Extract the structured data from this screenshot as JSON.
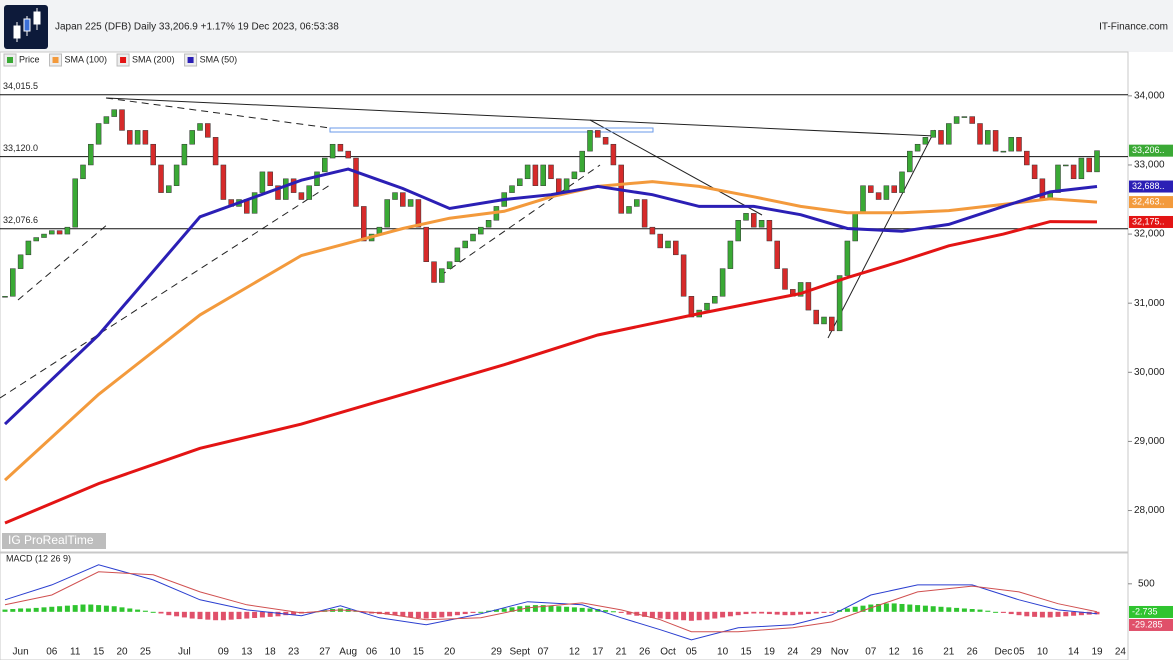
{
  "header": {
    "title": "Japan 225 (DFB) Daily 33,206.9 +1.17% 19 Dec 2023, 06:53:38",
    "brand": "IT-Finance.com",
    "watermark": "IG ProRealTime"
  },
  "chart_data": [
    {
      "type": "candlestick",
      "name": "Price",
      "up_color": "#3aa935",
      "down_color": "#d62a2a",
      "categories": [
        null,
        null,
        "Jun",
        null,
        null,
        null,
        "06",
        null,
        null,
        "11",
        null,
        null,
        "15",
        null,
        null,
        "20",
        null,
        null,
        "25",
        null,
        null,
        null,
        null,
        "Jul",
        null,
        null,
        null,
        null,
        "09",
        null,
        null,
        "13",
        null,
        null,
        "18",
        null,
        null,
        "23",
        null,
        null,
        null,
        "27",
        null,
        null,
        "Aug",
        null,
        null,
        "06",
        null,
        null,
        "10",
        null,
        null,
        "15",
        null,
        null,
        null,
        "20",
        null,
        null,
        null,
        null,
        null,
        "29",
        null,
        null,
        "Sept",
        null,
        null,
        "07",
        null,
        null,
        null,
        "12",
        null,
        null,
        "17",
        null,
        null,
        "21",
        null,
        null,
        "26",
        null,
        null,
        "Oct",
        null,
        null,
        "05",
        null,
        null,
        null,
        "10",
        null,
        null,
        "15",
        null,
        null,
        "19",
        null,
        null,
        "24",
        null,
        null,
        "29",
        null,
        null,
        "Nov",
        null,
        null,
        null,
        "07",
        null,
        null,
        "12",
        null,
        null,
        "16",
        null,
        null,
        null,
        "21",
        null,
        null,
        "26",
        null,
        null,
        null,
        "Dec",
        null,
        "05",
        null,
        null,
        "10",
        null,
        null,
        null,
        "14",
        null,
        null,
        "19",
        null,
        null,
        "24"
      ],
      "values": [
        31100,
        31500,
        31700,
        31900,
        31950,
        32000,
        32050,
        32000,
        32100,
        32800,
        33000,
        33300,
        33600,
        33700,
        33800,
        33500,
        33300,
        33500,
        33300,
        33000,
        32600,
        32700,
        33000,
        33300,
        33500,
        33600,
        33400,
        33000,
        32500,
        32400,
        32500,
        32300,
        32600,
        32900,
        32700,
        32500,
        32800,
        32600,
        32500,
        32700,
        32900,
        33100,
        33300,
        33200,
        33100,
        32400,
        31900,
        32000,
        32100,
        32500,
        32600,
        32400,
        32500,
        32100,
        31600,
        31300,
        31500,
        31600,
        31800,
        31900,
        32000,
        32100,
        32200,
        32400,
        32600,
        32700,
        32800,
        33000,
        32700,
        33000,
        32800,
        32600,
        32800,
        32900,
        33200,
        33500,
        33400,
        33300,
        33000,
        32300,
        32400,
        32500,
        32100,
        32000,
        31800,
        31900,
        31700,
        31100,
        30800,
        30900,
        31000,
        31100,
        31500,
        31900,
        32200,
        32300,
        32100,
        32200,
        31900,
        31500,
        31200,
        31100,
        31300,
        30900,
        30700,
        30800,
        30600,
        31400,
        31900,
        32300,
        32700,
        32600,
        32500,
        32700,
        32600,
        32900,
        33200,
        33300,
        33400,
        33500,
        33300,
        33600,
        33700,
        33700,
        33600,
        33300,
        33500,
        33200,
        33200,
        33400,
        33200,
        33000,
        32800,
        32500,
        32600,
        33000,
        33000,
        32800,
        33100,
        32900,
        33206.9,
        null,
        null,
        null
      ],
      "series": [
        {
          "name": "SMA (100)",
          "color": "#f39a3c",
          "x": [
            0,
            12,
            25,
            38,
            51,
            57,
            64,
            70,
            76,
            83,
            89,
            96,
            102,
            108,
            115,
            121,
            128,
            134,
            140
          ],
          "values": [
            28440,
            29680,
            30830,
            31690,
            32080,
            32230,
            32330,
            32540,
            32690,
            32760,
            32690,
            32540,
            32400,
            32310,
            32310,
            32340,
            32430,
            32510,
            32463
          ]
        },
        {
          "name": "SMA (200)",
          "color": "#e31414",
          "x": [
            0,
            12,
            25,
            38,
            51,
            64,
            76,
            89,
            102,
            108,
            115,
            121,
            128,
            134,
            140
          ],
          "values": [
            27820,
            28390,
            28900,
            29250,
            29680,
            30110,
            30540,
            30850,
            31140,
            31370,
            31610,
            31830,
            32000,
            32180,
            32176
          ]
        },
        {
          "name": "SMA (50)",
          "color": "#2b1fb5",
          "x": [
            0,
            12,
            25,
            38,
            44,
            51,
            57,
            64,
            70,
            76,
            83,
            89,
            96,
            102,
            108,
            115,
            121,
            128,
            134,
            140
          ],
          "values": [
            29250,
            30540,
            32250,
            32780,
            32940,
            32660,
            32370,
            32500,
            32570,
            32690,
            32570,
            32400,
            32400,
            32280,
            32080,
            32040,
            32140,
            32400,
            32610,
            32688
          ]
        }
      ],
      "ylim": [
        27400,
        34620
      ],
      "yticks": [
        {
          "value": 28000,
          "label": "28,000"
        },
        {
          "value": 29000,
          "label": "29,000"
        },
        {
          "value": 30000,
          "label": "30,000"
        },
        {
          "value": 31000,
          "label": "31,000"
        },
        {
          "value": 32000,
          "label": "32,000"
        },
        {
          "value": 33000,
          "label": "33,000"
        },
        {
          "value": 34000,
          "label": "34,000"
        }
      ],
      "levels": [
        {
          "value": 34015.5,
          "label": "34,015.5"
        },
        {
          "value": 33120,
          "label": "33,120.0"
        },
        {
          "value": 32076.6,
          "label": "32,076.6"
        }
      ],
      "tags": [
        {
          "value": 33206.9,
          "label": "33,206..",
          "color": "#3aa935"
        },
        {
          "value": 32688,
          "label": "32,688..",
          "color": "#2b1fb5"
        },
        {
          "value": 32463,
          "label": "32,463..",
          "color": "#f39a3c"
        },
        {
          "value": 32175,
          "label": "32,175..",
          "color": "#e31414"
        }
      ]
    },
    {
      "type": "macd",
      "title": "MACD (12 26 9)",
      "up_color": "#2fc42f",
      "down_color": "#e0506a",
      "values": [
        40,
        50,
        60,
        60,
        70,
        80,
        90,
        100,
        110,
        120,
        130,
        130,
        120,
        110,
        100,
        80,
        60,
        40,
        20,
        0,
        -30,
        -60,
        -80,
        -100,
        -120,
        -130,
        -140,
        -150,
        -150,
        -140,
        -130,
        -120,
        -110,
        -100,
        -90,
        -80,
        -60,
        -50,
        -30,
        -10,
        10,
        30,
        50,
        60,
        50,
        20,
        -10,
        -30,
        -40,
        -50,
        -60,
        -80,
        -100,
        -110,
        -120,
        -110,
        -100,
        -80,
        -60,
        -40,
        -20,
        0,
        20,
        40,
        60,
        80,
        100,
        110,
        120,
        120,
        110,
        100,
        90,
        80,
        70,
        60,
        50,
        30,
        10,
        -20,
        -50,
        -70,
        -90,
        -110,
        -120,
        -130,
        -140,
        -150,
        -160,
        -150,
        -140,
        -120,
        -100,
        -80,
        -60,
        -40,
        -30,
        -30,
        -40,
        -50,
        -60,
        -60,
        -50,
        -40,
        -30,
        -20,
        -10,
        30,
        60,
        90,
        110,
        130,
        140,
        150,
        150,
        140,
        130,
        120,
        110,
        100,
        90,
        80,
        70,
        60,
        50,
        40,
        20,
        0,
        -20,
        -40,
        -60,
        -80,
        -90,
        -100,
        -100,
        -90,
        -80,
        -70,
        -60,
        -50,
        -45,
        null,
        null,
        null
      ],
      "series": [
        {
          "color": "#2b3fd0",
          "x": [
            0,
            6,
            12,
            19,
            25,
            31,
            38,
            43,
            48,
            54,
            61,
            67,
            74,
            79,
            84,
            88,
            94,
            101,
            106,
            111,
            117,
            124,
            130,
            135,
            140
          ],
          "values": [
            215,
            480,
            840,
            570,
            215,
            35,
            -70,
            107,
            -107,
            -230,
            -35,
            180,
            125,
            -107,
            -320,
            -500,
            -285,
            -230,
            -55,
            300,
            480,
            480,
            215,
            35,
            -35
          ]
        },
        {
          "color": "#d05050",
          "x": [
            0,
            6,
            12,
            19,
            25,
            31,
            38,
            43,
            48,
            54,
            61,
            67,
            74,
            79,
            84,
            88,
            94,
            101,
            106,
            111,
            117,
            124,
            130,
            135,
            140
          ],
          "values": [
            125,
            300,
            715,
            660,
            355,
            125,
            -20,
            35,
            -20,
            -140,
            -107,
            70,
            160,
            35,
            -140,
            -355,
            -355,
            -285,
            -180,
            70,
            355,
            460,
            355,
            145,
            0
          ]
        }
      ],
      "ylim": [
        -860,
        1050
      ],
      "yticks": [
        500
      ],
      "tags": [
        {
          "value": -2.735,
          "label": "-2.735",
          "color": "#2fc42f"
        },
        {
          "value": -29.285,
          "label": "-29.285",
          "color": "#e0506a"
        }
      ]
    }
  ]
}
